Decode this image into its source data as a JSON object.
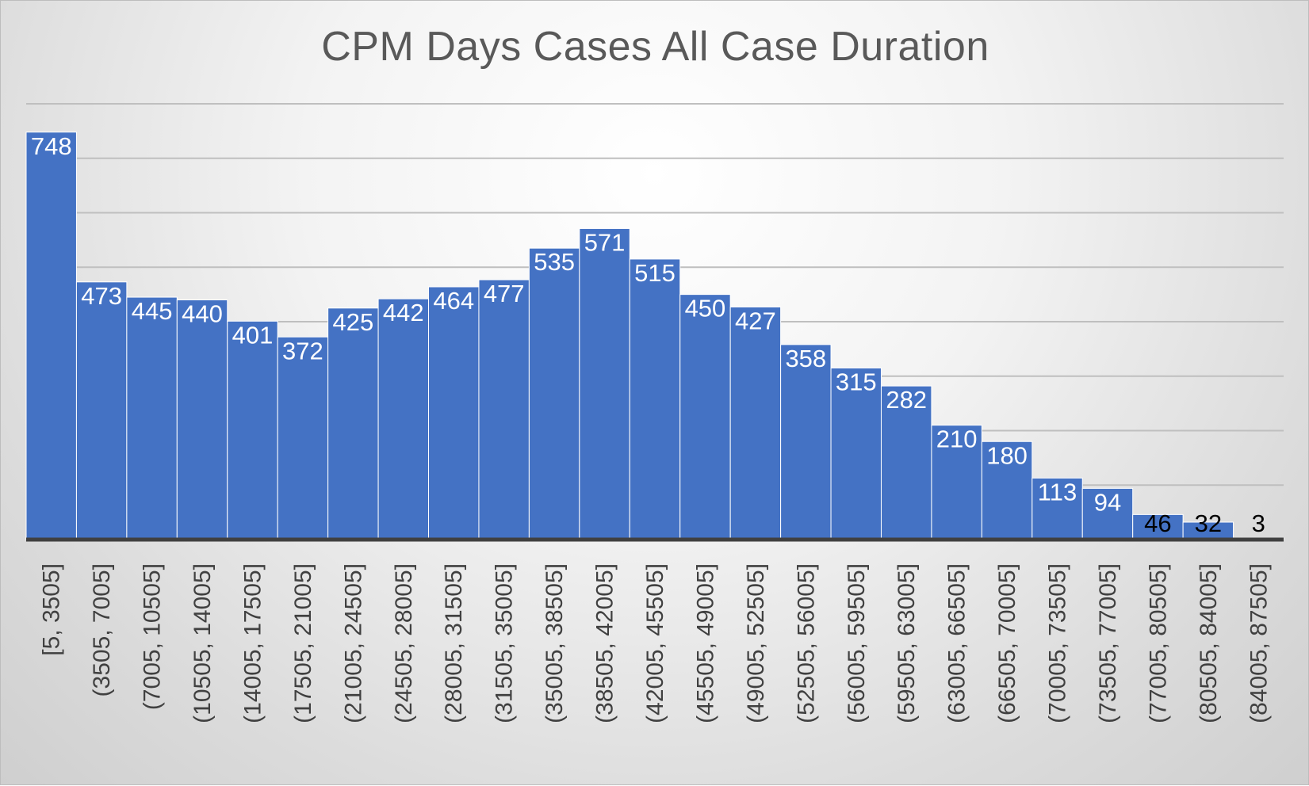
{
  "chart_data": {
    "type": "bar",
    "title": "CPM Days Cases All Case Duration",
    "categories": [
      "[5, 3505]",
      "(3505, 7005]",
      "(7005, 10505]",
      "(10505, 14005]",
      "(14005, 17505]",
      "(17505, 21005]",
      "(21005, 24505]",
      "(24505, 28005]",
      "(28005, 31505]",
      "(31505, 35005]",
      "(35005, 38505]",
      "(38505, 42005]",
      "(42005, 45505]",
      "(45505, 49005]",
      "(49005, 52505]",
      "(52505, 56005]",
      "(56005, 59505]",
      "(59505, 63005]",
      "(63005, 66505]",
      "(66505, 70005]",
      "(70005, 73505]",
      "(73505, 77005]",
      "(77005, 80505]",
      "(80505, 84005]",
      "(84005, 87505]"
    ],
    "values": [
      748,
      473,
      445,
      440,
      401,
      372,
      425,
      442,
      464,
      477,
      535,
      571,
      515,
      450,
      427,
      358,
      315,
      282,
      210,
      180,
      113,
      94,
      46,
      32,
      3
    ],
    "xlabel": "",
    "ylabel": "",
    "ylim": [
      0,
      800
    ],
    "grid": true,
    "legend": "none",
    "colors": {
      "bar": "#4472c4",
      "label_inside": "#ffffff",
      "label_outside": "#000000",
      "title": "#595959",
      "gridline": "#bfbfbf",
      "axis": "#404040"
    }
  }
}
